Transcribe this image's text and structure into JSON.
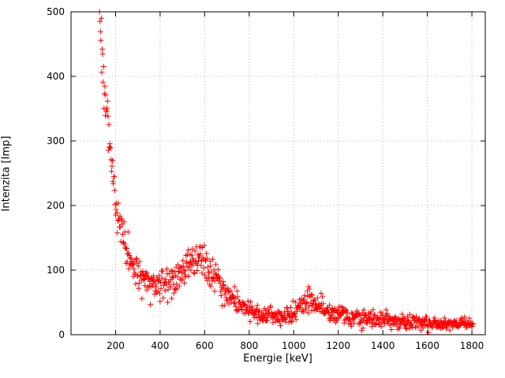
{
  "figure": {
    "background": "#ffffff",
    "border_color": "#000000",
    "grid_color": "#b4b4b4",
    "tick_label_color": "#000000"
  },
  "chart_data": {
    "type": "scatter",
    "title": "",
    "xlabel": "Energie [keV]",
    "ylabel": "Intenzita [Imp]",
    "xlim": [
      0,
      1860
    ],
    "ylim": [
      0,
      500
    ],
    "x_ticks": [
      200,
      400,
      600,
      800,
      1000,
      1200,
      1400,
      1600,
      1800
    ],
    "y_ticks": [
      0,
      100,
      200,
      300,
      400,
      500
    ],
    "grid": true,
    "legend_position": "none",
    "marker": {
      "shape": "plus",
      "color": "#ff0000",
      "size": 7
    },
    "description": "Gamma spectrum: steep low-energy continuum falling from ~500 Imp at ~130 keV, broad photopeak near 570 keV (~120-150 Imp), smaller photopeak near 1070 keV (~55-75 Imp), tail decaying to ~15-20 Imp at 1800 keV",
    "data_x_range": [
      128,
      1805
    ],
    "approx_point_count": 839,
    "noise_model": "sd = 1.25 * sqrt(y), values clamped to [1,500]",
    "curve_anchors": {
      "x": [
        128,
        140,
        150,
        160,
        170,
        180,
        190,
        200,
        210,
        220,
        230,
        240,
        250,
        260,
        270,
        280,
        290,
        300,
        320,
        340,
        360,
        380,
        400,
        420,
        440,
        460,
        480,
        500,
        520,
        540,
        560,
        575,
        590,
        610,
        630,
        650,
        670,
        690,
        710,
        730,
        750,
        780,
        810,
        840,
        870,
        900,
        930,
        960,
        990,
        1010,
        1030,
        1050,
        1070,
        1090,
        1110,
        1130,
        1150,
        1180,
        1210,
        1250,
        1300,
        1350,
        1400,
        1450,
        1500,
        1550,
        1600,
        1650,
        1700,
        1750,
        1805
      ],
      "y": [
        490,
        430,
        390,
        350,
        310,
        272,
        237,
        207,
        185,
        167,
        152,
        140,
        130,
        122,
        115,
        108,
        102,
        97,
        90,
        85,
        80,
        78,
        78,
        79,
        82,
        85,
        90,
        97,
        105,
        113,
        119,
        122,
        118,
        108,
        95,
        85,
        76,
        68,
        60,
        54,
        48,
        42,
        37,
        33,
        31,
        30,
        29,
        30,
        33,
        37,
        43,
        50,
        55,
        53,
        48,
        43,
        39,
        34,
        31,
        28,
        25,
        23,
        22,
        21,
        20,
        19,
        18,
        17,
        17,
        16,
        18
      ]
    }
  }
}
